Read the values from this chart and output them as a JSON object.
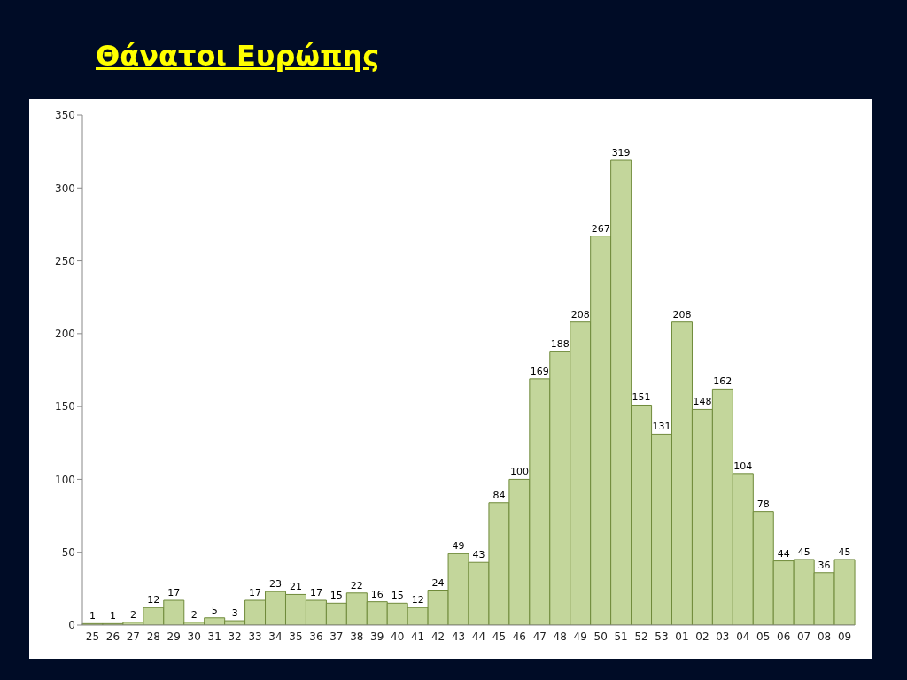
{
  "chart_data": {
    "type": "bar",
    "title": "Θάνατοι Ευρώπης",
    "categories": [
      "25",
      "26",
      "27",
      "28",
      "29",
      "30",
      "31",
      "32",
      "33",
      "34",
      "35",
      "36",
      "37",
      "38",
      "39",
      "40",
      "41",
      "42",
      "43",
      "44",
      "45",
      "46",
      "47",
      "48",
      "49",
      "50",
      "51",
      "52",
      "53",
      "01",
      "02",
      "03",
      "04",
      "05",
      "06",
      "07",
      "08",
      "09"
    ],
    "values": [
      1,
      1,
      2,
      12,
      17,
      2,
      5,
      3,
      17,
      23,
      21,
      17,
      15,
      22,
      16,
      15,
      12,
      24,
      49,
      43,
      84,
      100,
      169,
      188,
      208,
      267,
      319,
      151,
      131,
      208,
      148,
      162,
      104,
      78,
      44,
      45,
      36,
      45
    ],
    "color": "#c3d69b",
    "ylim": [
      0,
      350
    ],
    "yticks": [
      0,
      50,
      100,
      150,
      200,
      250,
      300,
      350
    ],
    "grid": false,
    "data_labels": true
  }
}
